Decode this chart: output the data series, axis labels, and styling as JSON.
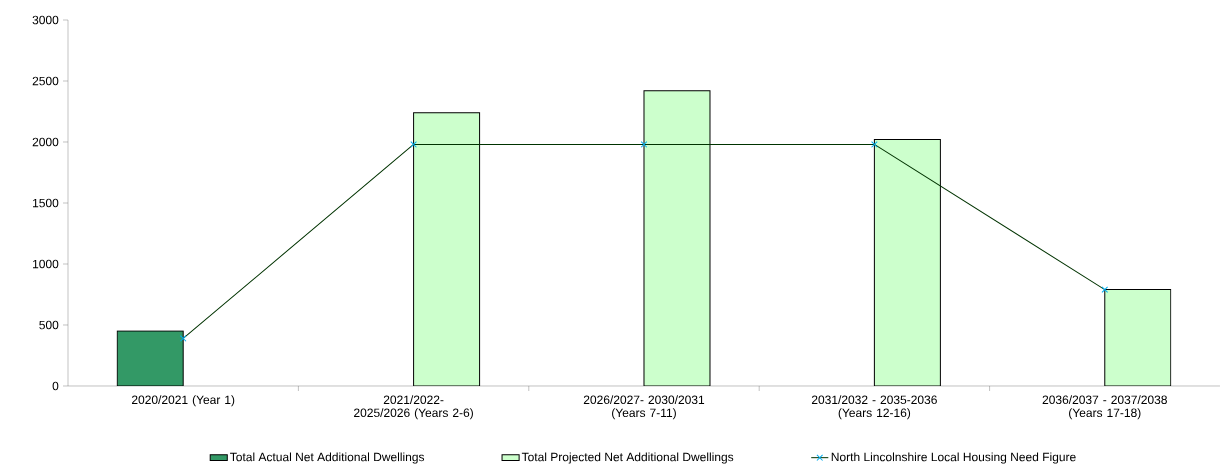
{
  "chart_data": {
    "type": "bar",
    "categories": [
      "2020/2021 (Year 1)",
      "2021/2022- 2025/2026 (Years 2-6)",
      "2026/2027- 2030/2031 (Years 7-11)",
      "2031/2032 - 2035-2036 (Years 12-16)",
      "2036/2037 - 2037/2038 (Years 17-18)"
    ],
    "series": [
      {
        "name": "Total Actual Net Additional Dwellings",
        "color": "#339966",
        "values": [
          450,
          null,
          null,
          null,
          null
        ]
      },
      {
        "name": "Total Projected Net Additional Dwellings",
        "color": "#ccffcc",
        "values": [
          null,
          2240,
          2420,
          2020,
          790
        ]
      },
      {
        "name": "North Lincolnshire Local Housing Need Figure",
        "type": "line",
        "color": "#003300",
        "values": [
          390,
          1980,
          1980,
          1980,
          790
        ]
      }
    ],
    "ylim": [
      0,
      3000
    ],
    "yticks": [
      0,
      500,
      1000,
      1500,
      2000,
      2500,
      3000
    ],
    "legend": "bottom",
    "marker": "cross"
  }
}
